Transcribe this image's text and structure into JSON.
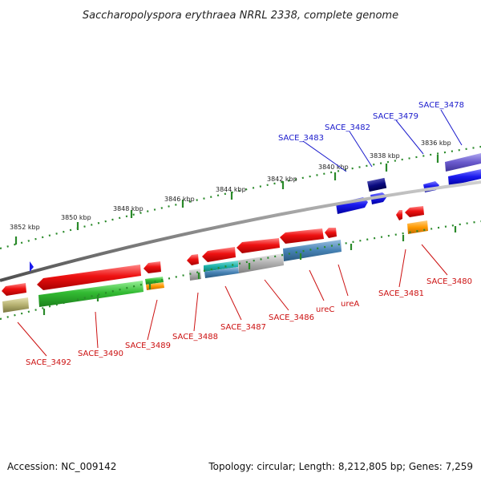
{
  "title": "Saccharopolyspora erythraea NRRL 2338, complete genome",
  "footer": {
    "accession": "Accession: NC_009142",
    "summary": "Topology: circular; Length: 8,212,805 bp; Genes: 7,259"
  },
  "kbp_labels": [
    "3852 kbp",
    "3850 kbp",
    "3848 kbp",
    "3846 kbp",
    "3844 kbp",
    "3842 kbp",
    "3840 kbp",
    "3838 kbp",
    "3836 kbp"
  ],
  "gene_labels_top": [
    "SACE_3483",
    "SACE_3482",
    "SACE_3479",
    "SACE_3478"
  ],
  "gene_labels_bottom": [
    "SACE_3492",
    "SACE_3490",
    "SACE_3489",
    "SACE_3488",
    "SACE_3487",
    "SACE_3486",
    "ureC",
    "ureA",
    "SACE_3481",
    "SACE_3480"
  ],
  "colors": {
    "backbone": "#8a8a8a",
    "tick": "#2a8a2a",
    "forward_gene": "#1a1aee",
    "forward_gene_dark": "#0a0a80",
    "forward_gene_purple": "#6a5acd",
    "reverse_gene": "#ee1111",
    "green_gene": "#33bb33",
    "orange_gene": "#ff9900",
    "khaki_gene": "#b5b070",
    "gray_gene": "#aaaaaa",
    "steelblue_gene": "#4682b4",
    "cyan_gene": "#20b2aa",
    "label_blue": "#1a1acc",
    "label_red": "#cc1111"
  }
}
